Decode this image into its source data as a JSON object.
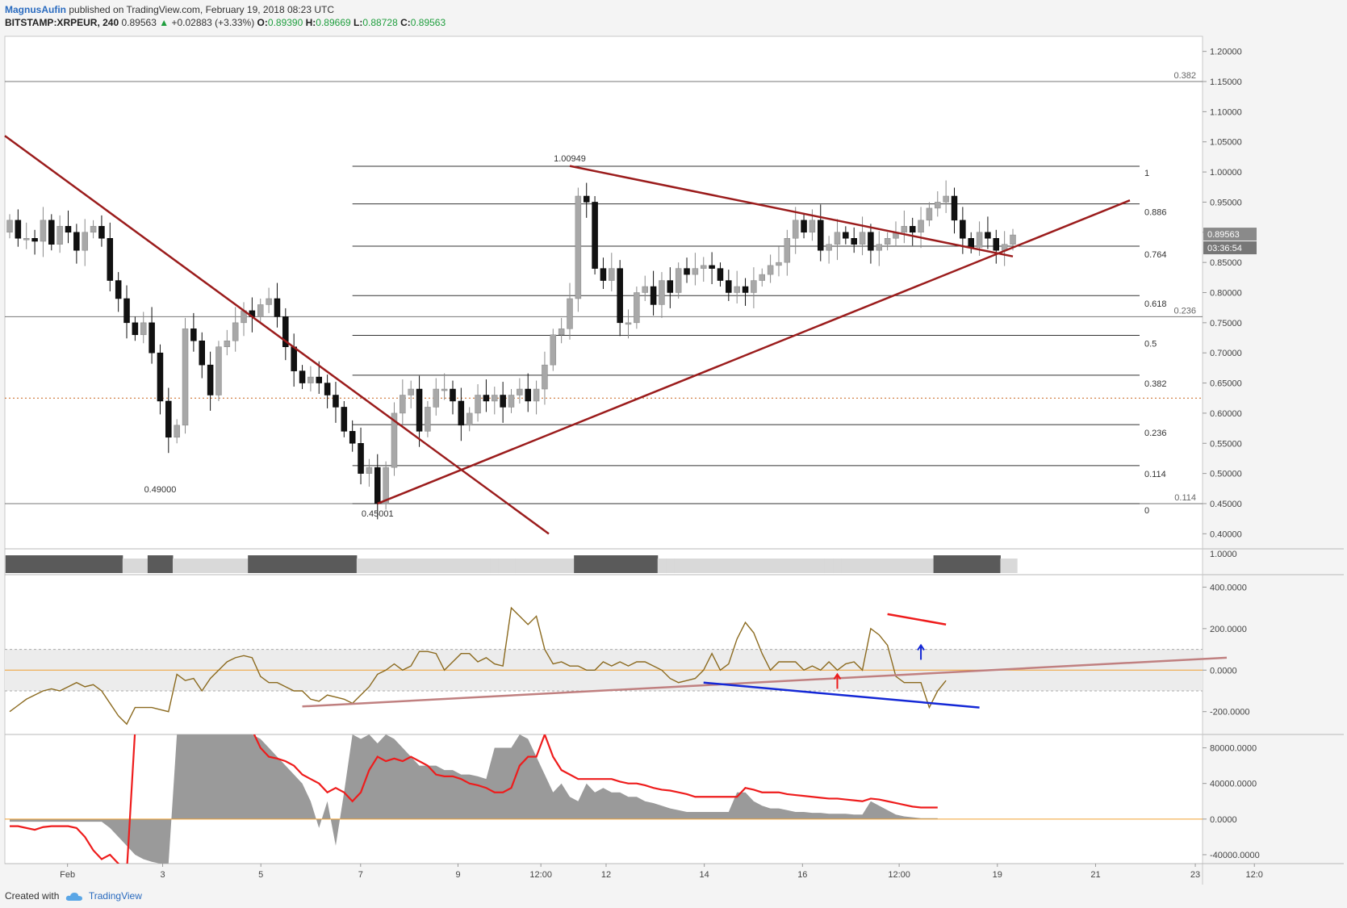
{
  "header": {
    "author": "MagnusAufin",
    "published": "published on TradingView.com, February 19, 2018 08:23 UTC",
    "symbol": "BITSTAMP:XRPEUR, 240",
    "last": "0.89563",
    "change": "+0.02883 (+3.33%)",
    "o_label": "O:",
    "o": "0.89390",
    "h_label": "H:",
    "h": "0.89669",
    "l_label": "L:",
    "l": "0.88728",
    "c_label": "C:",
    "c": "0.89563"
  },
  "footer": {
    "created_with": "Created with",
    "brand": "TradingView"
  },
  "colors": {
    "trendline": "#9b1c1c",
    "up_candle": "#a8a8a8",
    "down_candle": "#111111",
    "cci_line": "#8b6a1f",
    "red": "#ee1c1c",
    "blue": "#1428d6",
    "volume_fill": "#9a9a9a",
    "zero_line": "#f0a030"
  },
  "chart_data": [
    {
      "type": "candlestick",
      "name": "XRPEUR price",
      "ylim": [
        0.375,
        1.225
      ],
      "y_ticks": [
        "1.20000",
        "1.15000",
        "1.10000",
        "1.05000",
        "1.00000",
        "0.95000",
        "0.90000",
        "0.85000",
        "0.80000",
        "0.75000",
        "0.70000",
        "0.65000",
        "0.60000",
        "0.55000",
        "0.50000",
        "0.45000",
        "0.40000"
      ],
      "current_price": "0.89563",
      "countdown": "03:36:54",
      "x_ticks": [
        "Feb",
        "3",
        "5",
        "7",
        "9",
        "12:00",
        "12",
        "14",
        "16",
        "12:00",
        "19",
        "21",
        "23",
        "12:0"
      ],
      "closes": [
        0.92,
        0.89,
        0.89,
        0.885,
        0.92,
        0.88,
        0.91,
        0.9,
        0.87,
        0.9,
        0.91,
        0.89,
        0.82,
        0.79,
        0.75,
        0.73,
        0.75,
        0.7,
        0.62,
        0.56,
        0.58,
        0.74,
        0.72,
        0.68,
        0.63,
        0.71,
        0.72,
        0.75,
        0.77,
        0.76,
        0.78,
        0.79,
        0.76,
        0.71,
        0.67,
        0.65,
        0.66,
        0.65,
        0.63,
        0.61,
        0.57,
        0.55,
        0.5,
        0.51,
        0.45,
        0.51,
        0.6,
        0.63,
        0.64,
        0.57,
        0.61,
        0.64,
        0.64,
        0.62,
        0.58,
        0.6,
        0.63,
        0.62,
        0.63,
        0.61,
        0.63,
        0.64,
        0.62,
        0.64,
        0.68,
        0.73,
        0.74,
        0.79,
        0.96,
        0.95,
        0.84,
        0.82,
        0.84,
        0.75,
        0.75,
        0.8,
        0.81,
        0.78,
        0.82,
        0.8,
        0.84,
        0.83,
        0.84,
        0.845,
        0.84,
        0.82,
        0.8,
        0.81,
        0.8,
        0.82,
        0.83,
        0.845,
        0.85,
        0.89,
        0.92,
        0.9,
        0.92,
        0.87,
        0.88,
        0.9,
        0.89,
        0.88,
        0.9,
        0.87,
        0.88,
        0.89,
        0.9,
        0.91,
        0.9,
        0.92,
        0.94,
        0.95,
        0.96,
        0.92,
        0.89,
        0.875,
        0.9,
        0.89,
        0.87,
        0.88,
        0.89563
      ],
      "labels": [
        {
          "text": "1.00949",
          "value": 1.00949
        },
        {
          "text": "0.49000",
          "value": 0.49
        },
        {
          "text": "0.45001",
          "value": 0.45001
        }
      ],
      "fib_levels": [
        {
          "label": "1",
          "value": 1.00949
        },
        {
          "label": "0.886",
          "value": 0.947
        },
        {
          "label": "0.764",
          "value": 0.877
        },
        {
          "label": "0.618",
          "value": 0.795
        },
        {
          "label": "0.5",
          "value": 0.729
        },
        {
          "label": "0.382",
          "value": 0.663
        },
        {
          "label": "0.236",
          "value": 0.581
        },
        {
          "label": "0.114",
          "value": 0.513
        },
        {
          "label": "0",
          "value": 0.45001
        }
      ],
      "outer_fib_levels": [
        {
          "label": "0.382",
          "value": 1.15
        },
        {
          "label": "0.236",
          "value": 0.76
        },
        {
          "label": "0.114",
          "value": 0.45
        }
      ],
      "dotted_level": 0.625
    },
    {
      "type": "area",
      "name": "indicator band",
      "ylim": [
        0,
        1
      ],
      "y_ticks": [
        "1.0000"
      ],
      "values": [
        1,
        1,
        1,
        1,
        1,
        1,
        1,
        1,
        1,
        1,
        1,
        1,
        1,
        1,
        0,
        0,
        0,
        1,
        1,
        1,
        0,
        0,
        0,
        0,
        0,
        0,
        0,
        0,
        0,
        1,
        1,
        1,
        1,
        1,
        1,
        1,
        1,
        1,
        1,
        1,
        1,
        1,
        0,
        0,
        0,
        0,
        0,
        0,
        0,
        0,
        0,
        0,
        0,
        0,
        0,
        0,
        0,
        0,
        0,
        0,
        0,
        0,
        0,
        0,
        0,
        0,
        0,
        0,
        1,
        1,
        1,
        1,
        1,
        1,
        1,
        1,
        1,
        1,
        0,
        0,
        0,
        0,
        0,
        0,
        0,
        0,
        0,
        0,
        0,
        0,
        0,
        0,
        0,
        0,
        0,
        0,
        0,
        0,
        0,
        0,
        0,
        0,
        0,
        0,
        0,
        0,
        0,
        0,
        0,
        0,
        0,
        1,
        1,
        1,
        1,
        1,
        1,
        1,
        1,
        0,
        0
      ]
    },
    {
      "type": "line",
      "name": "CCI",
      "ylim": [
        -310,
        460
      ],
      "y_ticks": [
        "400.0000",
        "200.0000",
        "0.0000",
        "-200.0000"
      ],
      "band": [
        100,
        -100
      ],
      "values": [
        -200,
        -170,
        -140,
        -120,
        -100,
        -90,
        -100,
        -80,
        -60,
        -80,
        -70,
        -100,
        -160,
        -220,
        -260,
        -180,
        -180,
        -180,
        -190,
        -200,
        -20,
        -50,
        -40,
        -100,
        -40,
        0,
        40,
        60,
        70,
        60,
        -30,
        -60,
        -60,
        -80,
        -100,
        -100,
        -140,
        -150,
        -120,
        -130,
        -140,
        -160,
        -120,
        -80,
        -20,
        0,
        30,
        0,
        20,
        90,
        90,
        80,
        0,
        40,
        80,
        80,
        40,
        60,
        30,
        20,
        300,
        260,
        220,
        260,
        100,
        30,
        40,
        20,
        20,
        0,
        0,
        40,
        20,
        40,
        20,
        40,
        40,
        20,
        0,
        -40,
        -60,
        -50,
        -40,
        0,
        80,
        0,
        30,
        150,
        230,
        180,
        80,
        0,
        40,
        40,
        40,
        0,
        20,
        0,
        40,
        0,
        30,
        40,
        0,
        200,
        170,
        120,
        -30,
        -60,
        -60,
        -60,
        -180,
        -100,
        -50
      ],
      "annotations": {
        "red_line": [
          [
            105,
            270
          ],
          [
            112,
            220
          ]
        ],
        "blue_line": [
          [
            83,
            -60
          ],
          [
            116,
            -180
          ]
        ],
        "pink_line": [
          [
            35,
            -175
          ],
          [
            143,
            60
          ]
        ],
        "red_arrow_at": 99,
        "blue_arrow_at": 109
      }
    },
    {
      "type": "area",
      "name": "Volume oscillator",
      "ylim": [
        -50000,
        95000
      ],
      "y_ticks": [
        "80000.0000",
        "40000.0000",
        "0.0000",
        "-40000.0000"
      ],
      "area": [
        -3000,
        -3000,
        -3000,
        -3000,
        -3000,
        -3000,
        -3000,
        -3000,
        -3000,
        -3000,
        -3000,
        -3000,
        -10000,
        -20000,
        -30000,
        -40000,
        -45000,
        -48000,
        -50000,
        -50000,
        95000,
        95000,
        95000,
        95000,
        95000,
        95000,
        95000,
        95000,
        95000,
        95000,
        90000,
        80000,
        70000,
        60000,
        50000,
        40000,
        20000,
        -10000,
        20000,
        -30000,
        30000,
        95000,
        90000,
        95000,
        85000,
        95000,
        90000,
        80000,
        70000,
        60000,
        60000,
        60000,
        55000,
        55000,
        50000,
        50000,
        48000,
        45000,
        80000,
        80000,
        80000,
        95000,
        90000,
        70000,
        50000,
        30000,
        40000,
        25000,
        20000,
        40000,
        30000,
        35000,
        30000,
        30000,
        25000,
        25000,
        20000,
        18000,
        15000,
        12000,
        10000,
        8000,
        8000,
        8000,
        8000,
        8000,
        8000,
        30000,
        30000,
        20000,
        15000,
        12000,
        12000,
        10000,
        8000,
        8000,
        7000,
        7000,
        6000,
        6000,
        6000,
        5000,
        5000,
        20000,
        15000,
        10000,
        5000,
        3000,
        2000,
        1000,
        1000,
        1000
      ],
      "signal": [
        -8000,
        -8000,
        -10000,
        -12000,
        -9000,
        -8000,
        -8000,
        -8000,
        -10000,
        -20000,
        -35000,
        -45000,
        -40000,
        -50000,
        -60000,
        100000,
        100000,
        100000,
        100000,
        100000,
        100000,
        100000,
        100000,
        100000,
        100000,
        100000,
        100000,
        100000,
        100000,
        100000,
        80000,
        70000,
        68000,
        65000,
        60000,
        50000,
        45000,
        40000,
        30000,
        35000,
        30000,
        20000,
        30000,
        55000,
        70000,
        65000,
        68000,
        65000,
        70000,
        65000,
        60000,
        50000,
        48000,
        48000,
        45000,
        40000,
        38000,
        35000,
        30000,
        30000,
        35000,
        60000,
        70000,
        70000,
        95000,
        70000,
        55000,
        50000,
        45000,
        45000,
        45000,
        45000,
        45000,
        42000,
        40000,
        40000,
        38000,
        35000,
        33000,
        32000,
        30000,
        28000,
        25000,
        25000,
        25000,
        25000,
        25000,
        25000,
        35000,
        33000,
        30000,
        30000,
        30000,
        28000,
        27000,
        26000,
        25000,
        24000,
        23000,
        23000,
        22000,
        21000,
        20000,
        23000,
        22000,
        20000,
        18000,
        16000,
        14000,
        13000,
        13000,
        13000
      ]
    }
  ]
}
